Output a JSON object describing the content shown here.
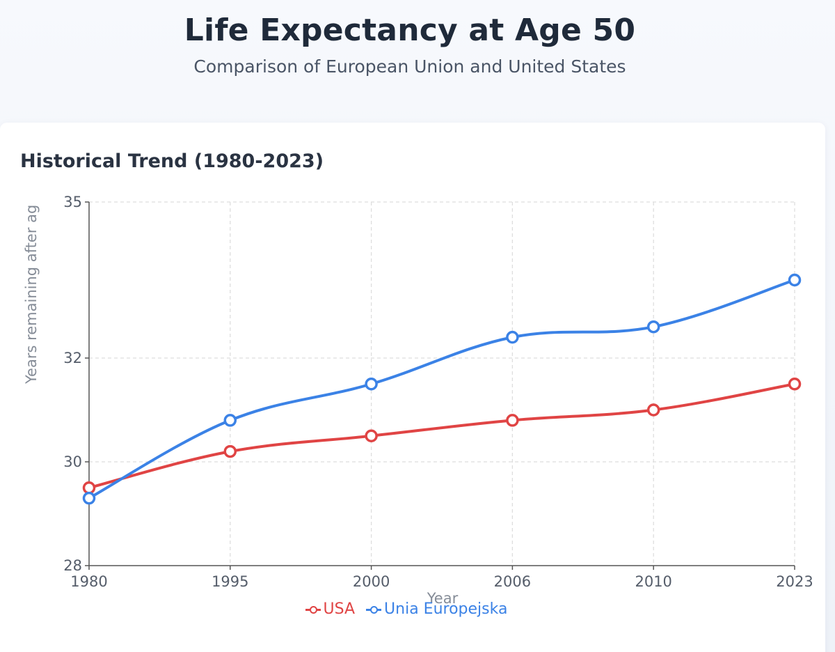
{
  "header": {
    "title": "Life Expectancy at Age 50",
    "subtitle": "Comparison of European Union and United States"
  },
  "card": {
    "title": "Historical Trend (1980-2023)"
  },
  "colors": {
    "usa": "#e04444",
    "eu": "#3b82e6",
    "grid": "#dedede",
    "axis": "#555555"
  },
  "chart_data": {
    "type": "line",
    "title": "Historical Trend (1980-2023)",
    "xlabel": "Year",
    "ylabel": "Years remaining after ag",
    "categories": [
      "1980",
      "1995",
      "2000",
      "2006",
      "2010",
      "2023"
    ],
    "ylim": [
      28,
      35
    ],
    "yticks": [
      "28",
      "30",
      "32",
      "35"
    ],
    "grid": true,
    "legend_position": "bottom-center",
    "series": [
      {
        "name": "USA",
        "color": "#e04444",
        "values": [
          29.5,
          30.2,
          30.5,
          30.8,
          31.0,
          31.5
        ]
      },
      {
        "name": "Unia Europejska",
        "color": "#3b82e6",
        "values": [
          29.3,
          30.8,
          31.5,
          32.4,
          32.6,
          33.5
        ]
      }
    ]
  }
}
